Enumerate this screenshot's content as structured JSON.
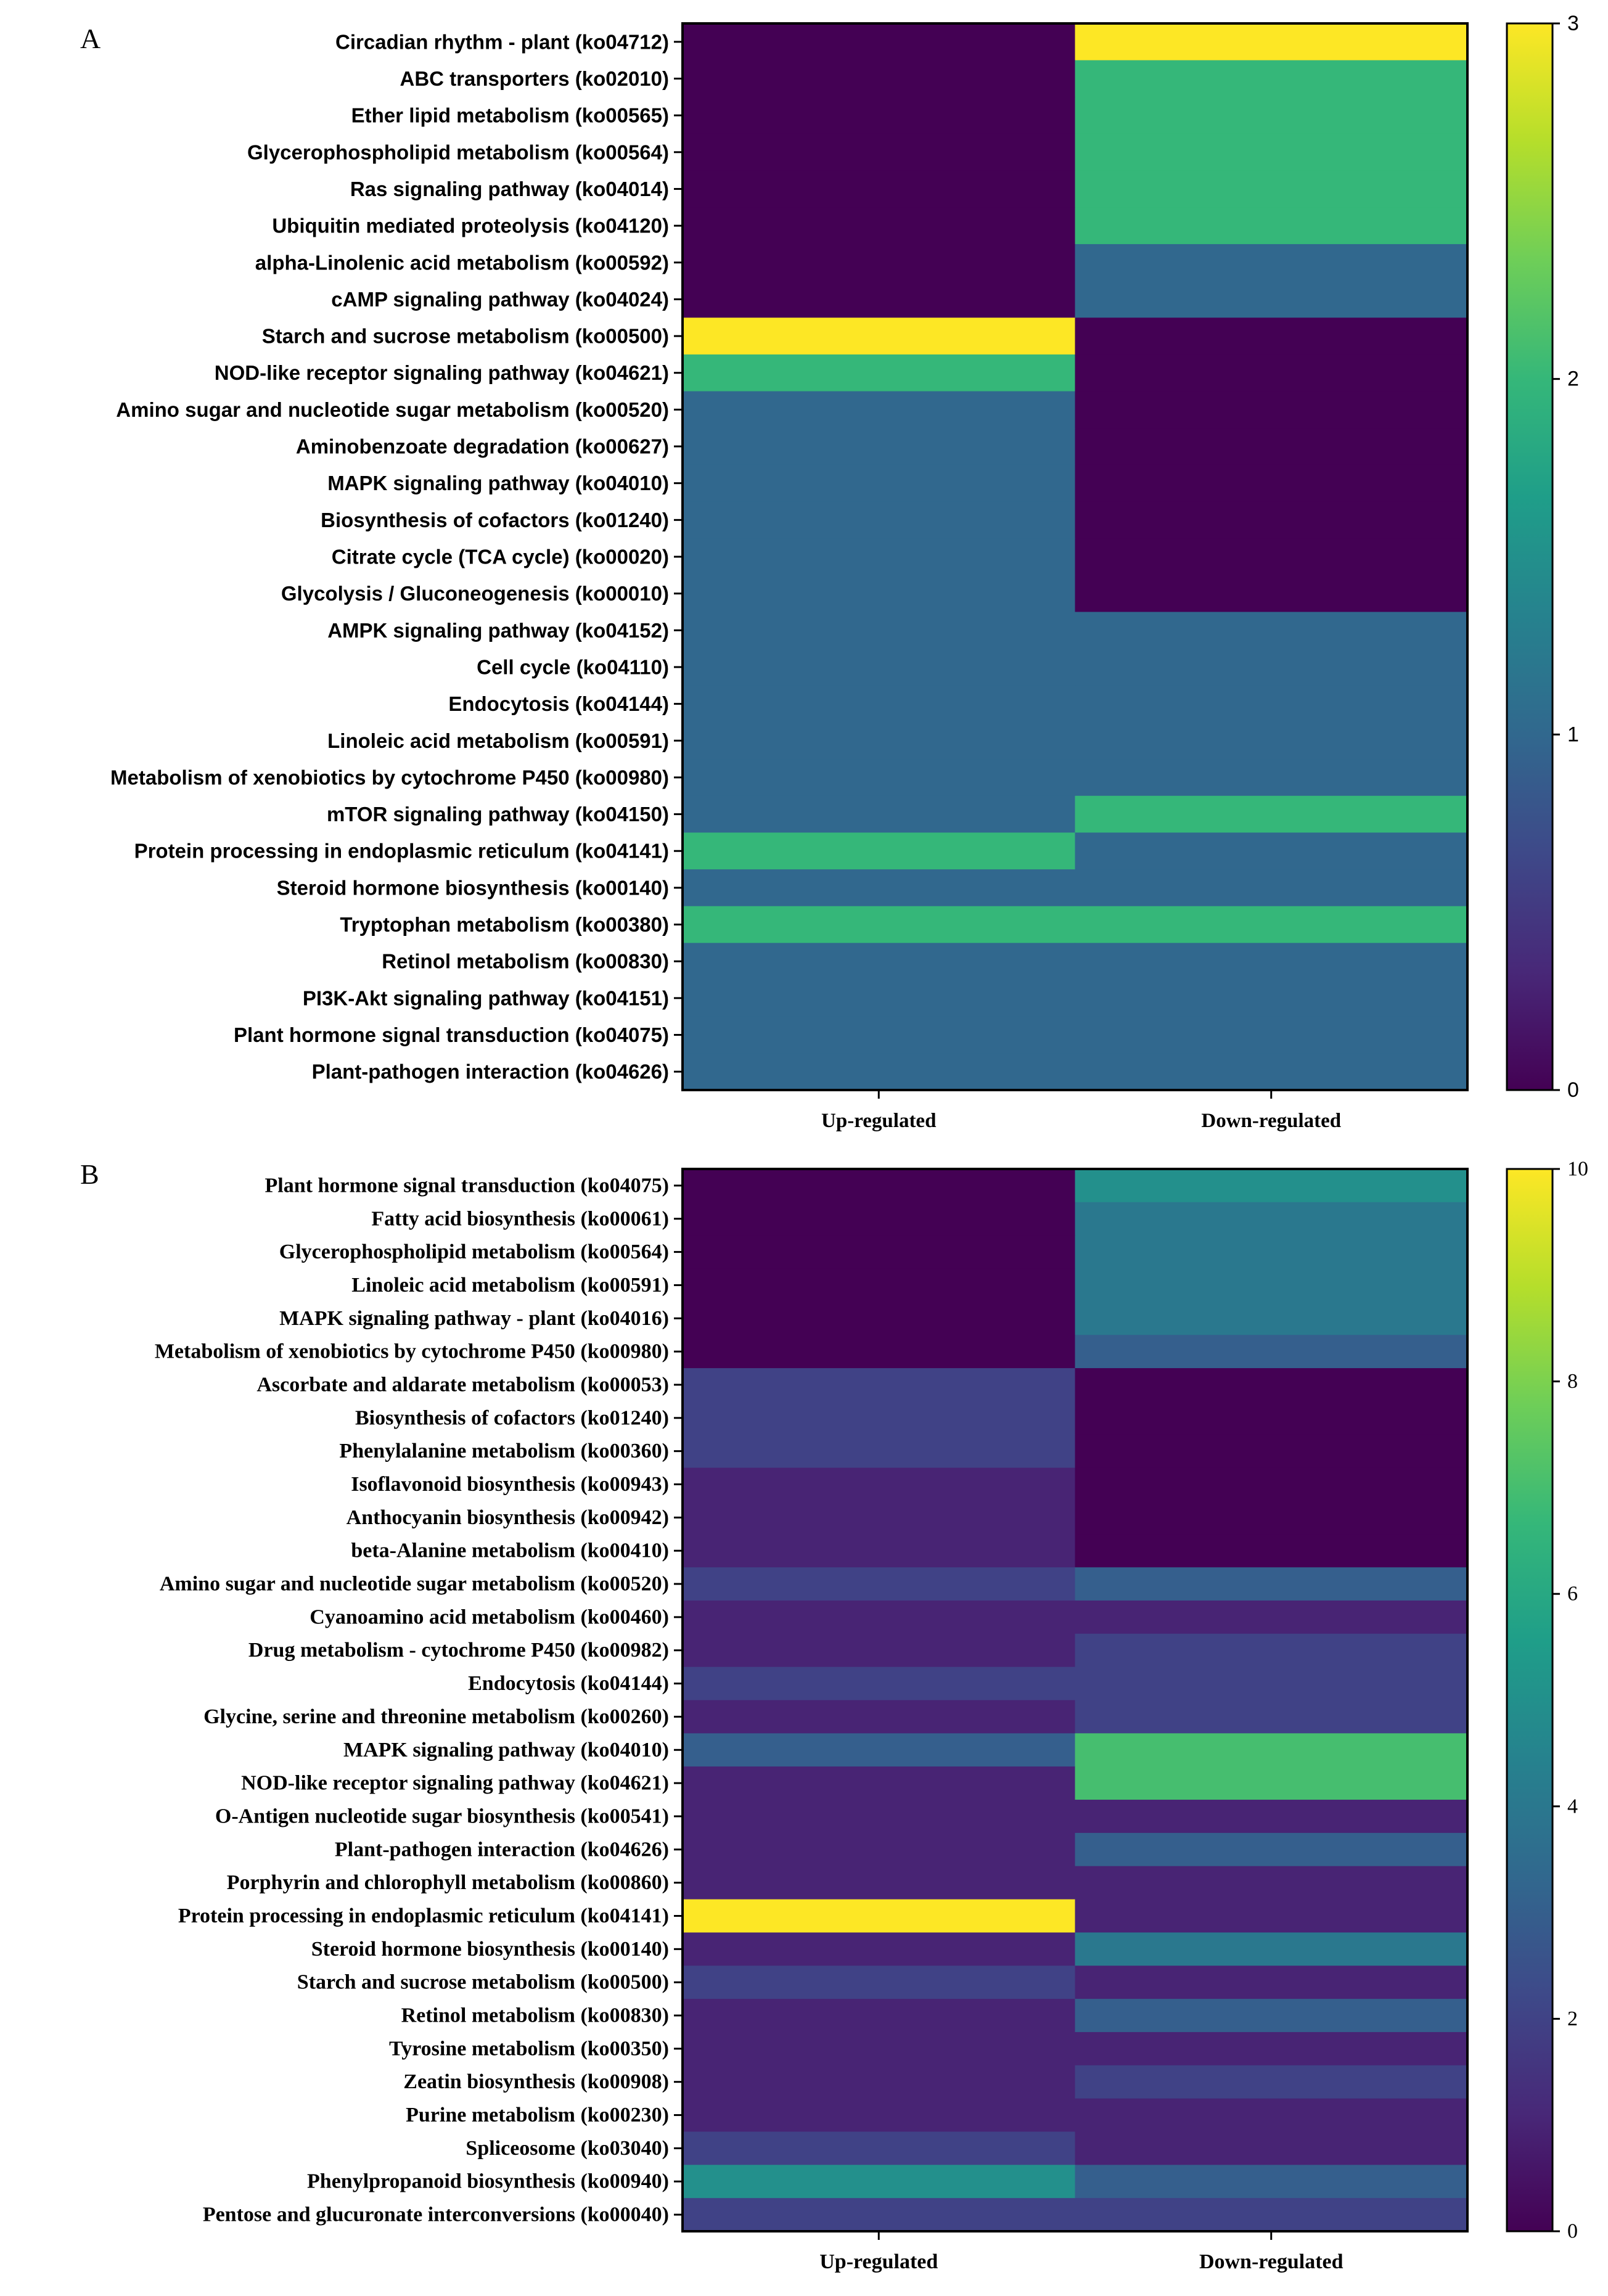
{
  "chart_data": [
    {
      "type": "heatmap",
      "panel": "A",
      "columns": [
        "Up-regulated",
        "Down-regulated"
      ],
      "rows": [
        "Circadian rhythm - plant (ko04712)",
        "ABC transporters (ko02010)",
        "Ether lipid metabolism (ko00565)",
        "Glycerophospholipid metabolism (ko00564)",
        "Ras signaling pathway (ko04014)",
        "Ubiquitin mediated proteolysis (ko04120)",
        "alpha-Linolenic acid metabolism (ko00592)",
        "cAMP signaling pathway (ko04024)",
        "Starch and sucrose metabolism (ko00500)",
        "NOD-like receptor signaling pathway (ko04621)",
        "Amino sugar and nucleotide sugar metabolism (ko00520)",
        "Aminobenzoate degradation (ko00627)",
        "MAPK signaling pathway (ko04010)",
        "Biosynthesis of cofactors (ko01240)",
        "Citrate cycle (TCA cycle) (ko00020)",
        "Glycolysis / Gluconeogenesis (ko00010)",
        "AMPK signaling pathway (ko04152)",
        "Cell cycle (ko04110)",
        "Endocytosis (ko04144)",
        "Linoleic acid metabolism (ko00591)",
        "Metabolism of xenobiotics by cytochrome P450 (ko00980)",
        "mTOR signaling pathway (ko04150)",
        "Protein processing in endoplasmic reticulum (ko04141)",
        "Steroid hormone biosynthesis (ko00140)",
        "Tryptophan metabolism (ko00380)",
        "Retinol metabolism (ko00830)",
        "PI3K-Akt signaling pathway (ko04151)",
        "Plant hormone signal transduction (ko04075)",
        "Plant-pathogen interaction (ko04626)"
      ],
      "values": [
        [
          0,
          3
        ],
        [
          0,
          2
        ],
        [
          0,
          2
        ],
        [
          0,
          2
        ],
        [
          0,
          2
        ],
        [
          0,
          2
        ],
        [
          0,
          1
        ],
        [
          0,
          1
        ],
        [
          3,
          0
        ],
        [
          2,
          0
        ],
        [
          1,
          0
        ],
        [
          1,
          0
        ],
        [
          1,
          0
        ],
        [
          1,
          0
        ],
        [
          1,
          0
        ],
        [
          1,
          0
        ],
        [
          1,
          1
        ],
        [
          1,
          1
        ],
        [
          1,
          1
        ],
        [
          1,
          1
        ],
        [
          1,
          1
        ],
        [
          1,
          2
        ],
        [
          2,
          1
        ],
        [
          1,
          1
        ],
        [
          2,
          2
        ],
        [
          1,
          1
        ],
        [
          1,
          1
        ],
        [
          1,
          1
        ],
        [
          1,
          1
        ]
      ],
      "colorbar": {
        "min": 0,
        "max": 3,
        "ticks": [
          "0",
          "1",
          "2",
          "3"
        ]
      }
    },
    {
      "type": "heatmap",
      "panel": "B",
      "columns": [
        "Up-regulated",
        "Down-regulated"
      ],
      "rows": [
        "Plant hormone signal transduction (ko04075)",
        "Fatty acid biosynthesis (ko00061)",
        "Glycerophospholipid metabolism (ko00564)",
        "Linoleic acid metabolism (ko00591)",
        "MAPK signaling pathway - plant (ko04016)",
        "Metabolism of xenobiotics by cytochrome P450 (ko00980)",
        "Ascorbate and aldarate metabolism (ko00053)",
        "Biosynthesis of cofactors (ko01240)",
        "Phenylalanine metabolism (ko00360)",
        "Isoflavonoid biosynthesis (ko00943)",
        "Anthocyanin biosynthesis (ko00942)",
        "beta-Alanine metabolism (ko00410)",
        "Amino sugar and nucleotide sugar metabolism (ko00520)",
        "Cyanoamino acid metabolism (ko00460)",
        "Drug metabolism - cytochrome P450 (ko00982)",
        "Endocytosis (ko04144)",
        "Glycine, serine and threonine metabolism (ko00260)",
        "MAPK signaling pathway (ko04010)",
        "NOD-like receptor signaling pathway (ko04621)",
        "O-Antigen nucleotide sugar biosynthesis (ko00541)",
        "Plant-pathogen interaction (ko04626)",
        "Porphyrin and chlorophyll metabolism (ko00860)",
        "Protein processing in endoplasmic reticulum (ko04141)",
        "Steroid hormone biosynthesis (ko00140)",
        "Starch and sucrose metabolism (ko00500)",
        "Retinol metabolism (ko00830)",
        "Tyrosine metabolism (ko00350)",
        "Zeatin biosynthesis (ko00908)",
        "Purine metabolism (ko00230)",
        "Spliceosome (ko03040)",
        "Phenylpropanoid biosynthesis (ko00940)",
        "Pentose and glucuronate interconversions (ko00040)"
      ],
      "values": [
        [
          0,
          5
        ],
        [
          0,
          4
        ],
        [
          0,
          4
        ],
        [
          0,
          4
        ],
        [
          0,
          4
        ],
        [
          0,
          3
        ],
        [
          2,
          0
        ],
        [
          2,
          0
        ],
        [
          2,
          0
        ],
        [
          1,
          0
        ],
        [
          1,
          0
        ],
        [
          1,
          0
        ],
        [
          2,
          3
        ],
        [
          1,
          1
        ],
        [
          1,
          2
        ],
        [
          2,
          2
        ],
        [
          1,
          2
        ],
        [
          3,
          7
        ],
        [
          1,
          7
        ],
        [
          1,
          1
        ],
        [
          1,
          3
        ],
        [
          1,
          1
        ],
        [
          10,
          1
        ],
        [
          1,
          4
        ],
        [
          2,
          1
        ],
        [
          1,
          3
        ],
        [
          1,
          1
        ],
        [
          1,
          2
        ],
        [
          1,
          1
        ],
        [
          2,
          1
        ],
        [
          5,
          3
        ],
        [
          2,
          2
        ]
      ],
      "colorbar": {
        "min": 0,
        "max": 10,
        "ticks": [
          "0",
          "2",
          "4",
          "6",
          "8",
          "10"
        ]
      }
    }
  ],
  "viridis": [
    "#440154",
    "#482878",
    "#3e4989",
    "#31688e",
    "#26828e",
    "#1f9e89",
    "#35b779",
    "#6ece58",
    "#b5de2b",
    "#fde725"
  ]
}
